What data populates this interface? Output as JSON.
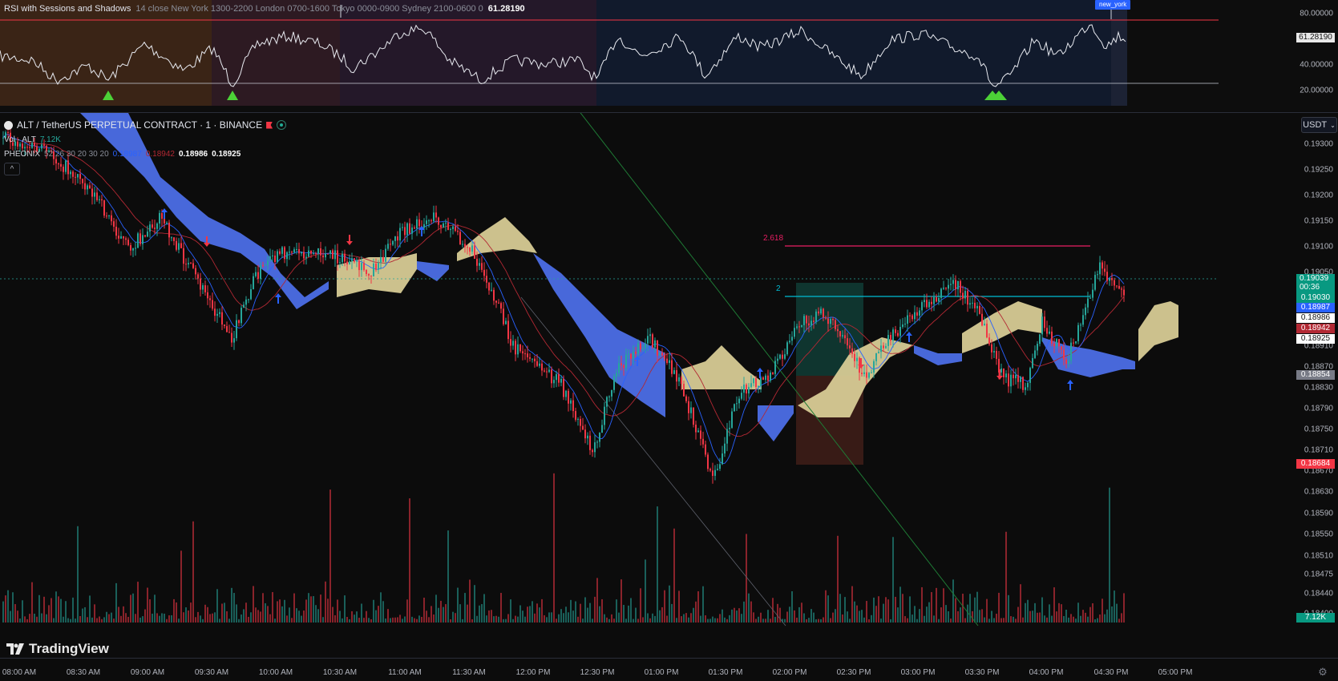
{
  "rsi_pane": {
    "indicator_name": "RSI with Sessions and Shadows",
    "params": "14 close New York 1300-2200 London 0700-1600 Tokyo 0000-0900 Sydney 2100-0600 0",
    "value": "61.28190",
    "session_badge": "new_york",
    "y_ticks": [
      "80.00000",
      "40.00000",
      "20.00000"
    ],
    "current_tag": "61.28190",
    "colors": {
      "london": "#3a2416",
      "tokyo": "#2d1a22",
      "sydney": "#241829",
      "new_york": "#111a2c",
      "upper_band": "#f23645",
      "lower_band": "#d1d4dc",
      "buy_triangle": "#4cd137"
    }
  },
  "main_pane": {
    "symbol_title": "ALT / TetherUS PERPETUAL CONTRACT · 1 · BINANCE",
    "volume_label": "Vol · ALT",
    "volume_value": "7.12K",
    "indicator_name": "PHEONIX",
    "indicator_params": "52 26 30 20 30 20",
    "indicator_values": [
      "0.18987",
      "0.18942",
      "0.18986",
      "0.18925"
    ],
    "currency": "USDT",
    "fib_labels": {
      "upper": "2.618",
      "lower": "2"
    },
    "y_ticks": [
      "0.19300",
      "0.19250",
      "0.19200",
      "0.19150",
      "0.19100",
      "0.19050",
      "0.18910",
      "0.18870",
      "0.18830",
      "0.18790",
      "0.18750",
      "0.18710",
      "0.18670",
      "0.18630",
      "0.18590",
      "0.18550",
      "0.18510",
      "0.18475",
      "0.18440",
      "0.18400"
    ],
    "price_tags": {
      "last_price": "0.19039",
      "countdown": "00:36",
      "tag_1": "0.19030",
      "tag_2": "0.18987",
      "tag_3": "0.18986",
      "tag_4": "0.18942",
      "tag_5": "0.18925",
      "tag_6": "0.18854",
      "tag_7": "0.18684",
      "volume_tag": "7.12K"
    },
    "colors": {
      "up": "#26a69a",
      "down": "#f23645",
      "cloud_bull": "#d7cb95",
      "cloud_bear": "#4c6ee6",
      "tenkan": "#2962ff",
      "kijun": "#b22833",
      "fib_upper": "#e91e63",
      "fib_lower": "#00bcd4",
      "trendline": "#1f7a35"
    }
  },
  "time_axis": {
    "ticks": [
      "08:00 AM",
      "08:30 AM",
      "09:00 AM",
      "09:30 AM",
      "10:00 AM",
      "10:30 AM",
      "11:00 AM",
      "11:30 AM",
      "12:00 PM",
      "12:30 PM",
      "01:00 PM",
      "01:30 PM",
      "02:00 PM",
      "02:30 PM",
      "03:00 PM",
      "03:30 PM",
      "04:00 PM",
      "04:30 PM",
      "05:00 PM"
    ]
  },
  "branding": {
    "logo_text": "TradingView"
  }
}
